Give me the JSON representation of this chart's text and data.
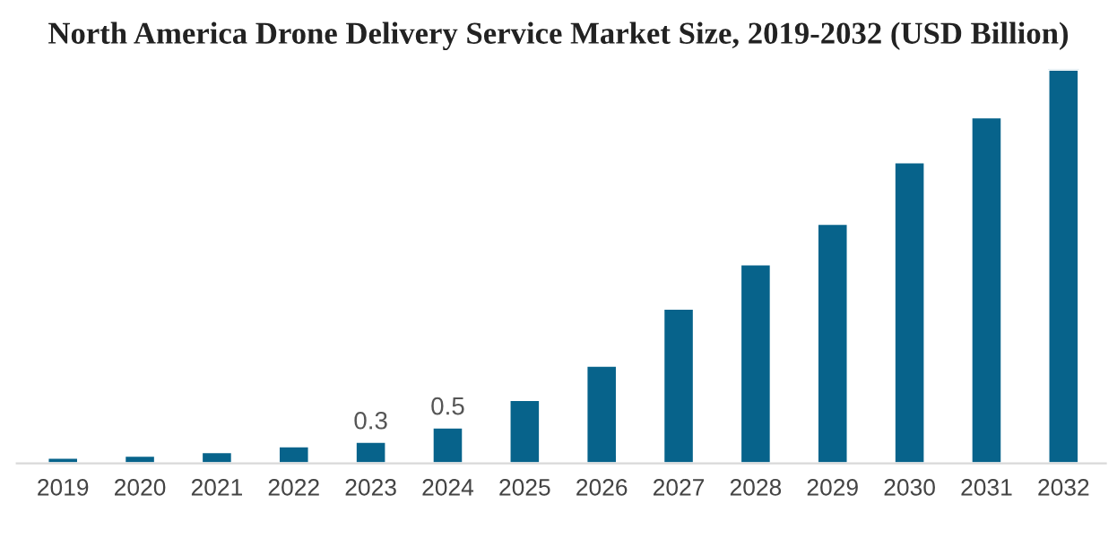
{
  "chart_data": {
    "type": "bar",
    "title": "North America Drone Delivery Service Market Size, 2019-2032 (USD Billion)",
    "categories": [
      "2019",
      "2020",
      "2021",
      "2022",
      "2023",
      "2024",
      "2025",
      "2026",
      "2027",
      "2028",
      "2029",
      "2030",
      "2031",
      "2032"
    ],
    "values": [
      0.08,
      0.11,
      0.16,
      0.24,
      0.3,
      0.5,
      0.88,
      1.35,
      2.14,
      2.75,
      3.31,
      4.16,
      4.78,
      5.44
    ],
    "value_labels": [
      null,
      null,
      null,
      null,
      "0.3",
      "0.5",
      null,
      null,
      null,
      null,
      null,
      null,
      null,
      null
    ],
    "color": "#07638b",
    "grid": false,
    "legend": false
  }
}
